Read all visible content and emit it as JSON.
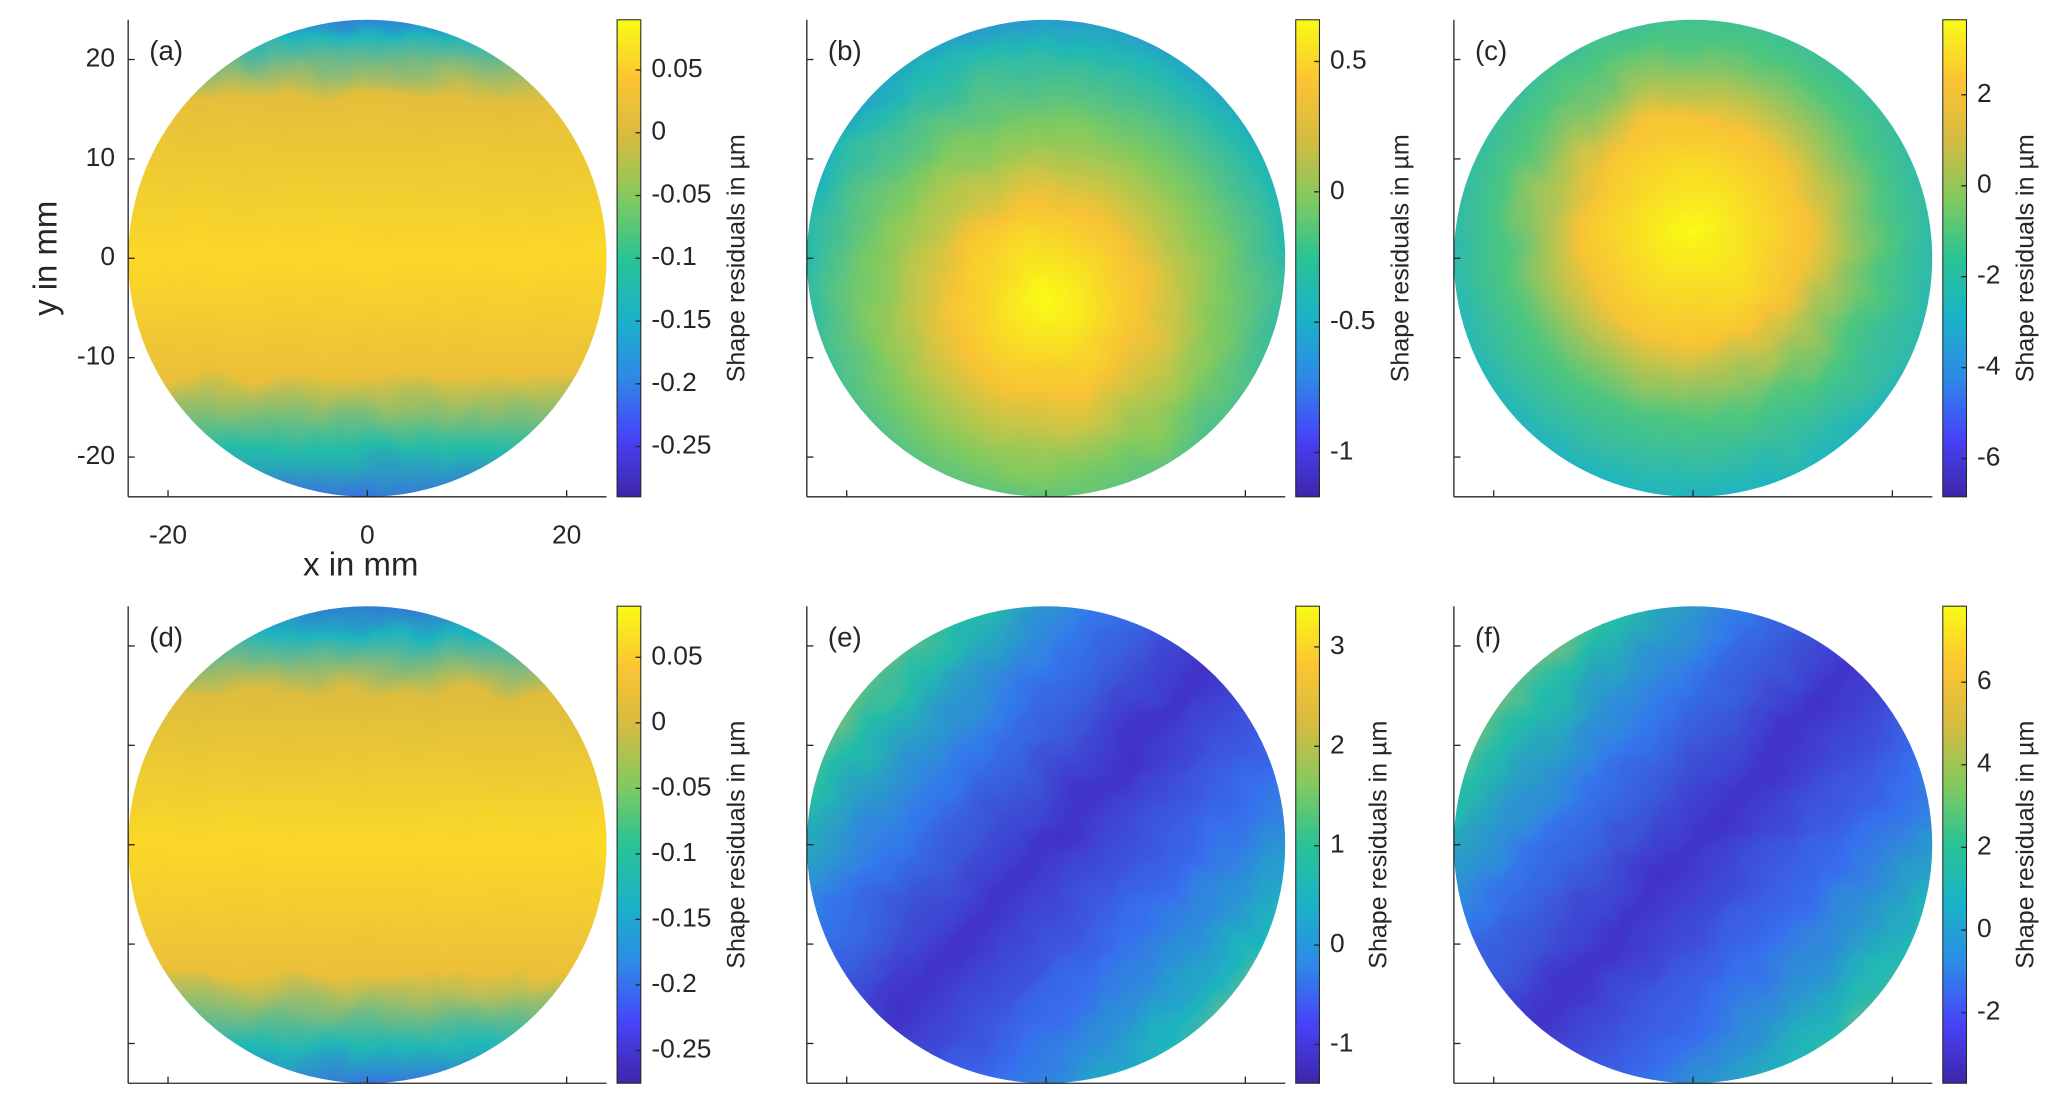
{
  "chart_data": [
    {
      "type": "heatmap",
      "panel": "(a)",
      "xlabel": "x in mm",
      "ylabel": "y in mm",
      "tick_labels": true,
      "xlim": [
        -24,
        24
      ],
      "ylim": [
        -24,
        24
      ],
      "xticks": [
        -20,
        0,
        20
      ],
      "yticks": [
        -20,
        -10,
        0,
        10,
        20
      ],
      "colormap": [
        "#3e26a8",
        "#4743f8",
        "#2d8ae7",
        "#1bb2c8",
        "#29c394",
        "#82ca5f",
        "#d6bb40",
        "#fcc433",
        "#f9fb15"
      ],
      "colorbar": {
        "label": "Shape residuals in µm",
        "clim": [
          -0.29,
          0.09
        ],
        "ticks": [
          -0.25,
          -0.2,
          -0.15,
          -0.1,
          -0.05,
          0,
          0.05
        ]
      }
    },
    {
      "type": "heatmap",
      "panel": "(b)",
      "tick_labels": false,
      "xlim": [
        -24,
        24
      ],
      "ylim": [
        -24,
        24
      ],
      "xticks": [
        -20,
        0,
        20
      ],
      "yticks": [
        -20,
        -10,
        0,
        10,
        20
      ],
      "colormap": [
        "#3e26a8",
        "#4743f8",
        "#2d8ae7",
        "#1bb2c8",
        "#29c394",
        "#82ca5f",
        "#d6bb40",
        "#fcc433",
        "#f9fb15"
      ],
      "colorbar": {
        "label": "Shape residuals in µm",
        "clim": [
          -1.17,
          0.66
        ],
        "ticks": [
          -1,
          -0.5,
          0,
          0.5
        ]
      }
    },
    {
      "type": "heatmap",
      "panel": "(c)",
      "tick_labels": false,
      "xlim": [
        -24,
        24
      ],
      "ylim": [
        -24,
        24
      ],
      "xticks": [
        -20,
        0,
        20
      ],
      "yticks": [
        -20,
        -10,
        0,
        10,
        20
      ],
      "colormap": [
        "#3e26a8",
        "#4743f8",
        "#2d8ae7",
        "#1bb2c8",
        "#29c394",
        "#82ca5f",
        "#d6bb40",
        "#fcc433",
        "#f9fb15"
      ],
      "colorbar": {
        "label": "Shape residuals in µm",
        "clim": [
          -6.84,
          3.65
        ],
        "ticks": [
          -6,
          -4,
          -2,
          0,
          2
        ]
      }
    },
    {
      "type": "heatmap",
      "panel": "(d)",
      "tick_labels": false,
      "xlim": [
        -24,
        24
      ],
      "ylim": [
        -24,
        24
      ],
      "xticks": [
        -20,
        0,
        20
      ],
      "yticks": [
        -20,
        -10,
        0,
        10,
        20
      ],
      "colormap": [
        "#3e26a8",
        "#4743f8",
        "#2d8ae7",
        "#1bb2c8",
        "#29c394",
        "#82ca5f",
        "#d6bb40",
        "#fcc433",
        "#f9fb15"
      ],
      "colorbar": {
        "label": "Shape residuals in µm",
        "clim": [
          -0.275,
          0.089
        ],
        "ticks": [
          -0.25,
          -0.2,
          -0.15,
          -0.1,
          -0.05,
          0,
          0.05
        ]
      }
    },
    {
      "type": "heatmap",
      "panel": "(e)",
      "tick_labels": false,
      "xlim": [
        -24,
        24
      ],
      "ylim": [
        -24,
        24
      ],
      "xticks": [
        -20,
        0,
        20
      ],
      "yticks": [
        -20,
        -10,
        0,
        10,
        20
      ],
      "colormap": [
        "#3e26a8",
        "#4743f8",
        "#2d8ae7",
        "#1bb2c8",
        "#29c394",
        "#82ca5f",
        "#d6bb40",
        "#fcc433",
        "#f9fb15"
      ],
      "colorbar": {
        "label": "Shape residuals in µm",
        "clim": [
          -1.39,
          3.41
        ],
        "ticks": [
          -1,
          0,
          1,
          2,
          3
        ]
      }
    },
    {
      "type": "heatmap",
      "panel": "(f)",
      "tick_labels": false,
      "xlim": [
        -24,
        24
      ],
      "ylim": [
        -24,
        24
      ],
      "xticks": [
        -20,
        0,
        20
      ],
      "yticks": [
        -20,
        -10,
        0,
        10,
        20
      ],
      "colormap": [
        "#3e26a8",
        "#4743f8",
        "#2d8ae7",
        "#1bb2c8",
        "#29c394",
        "#82ca5f",
        "#d6bb40",
        "#fcc433",
        "#f9fb15"
      ],
      "colorbar": {
        "label": "Shape residuals in µm",
        "clim": [
          -3.71,
          7.84
        ],
        "ticks": [
          -2,
          0,
          2,
          4,
          6
        ]
      }
    }
  ]
}
